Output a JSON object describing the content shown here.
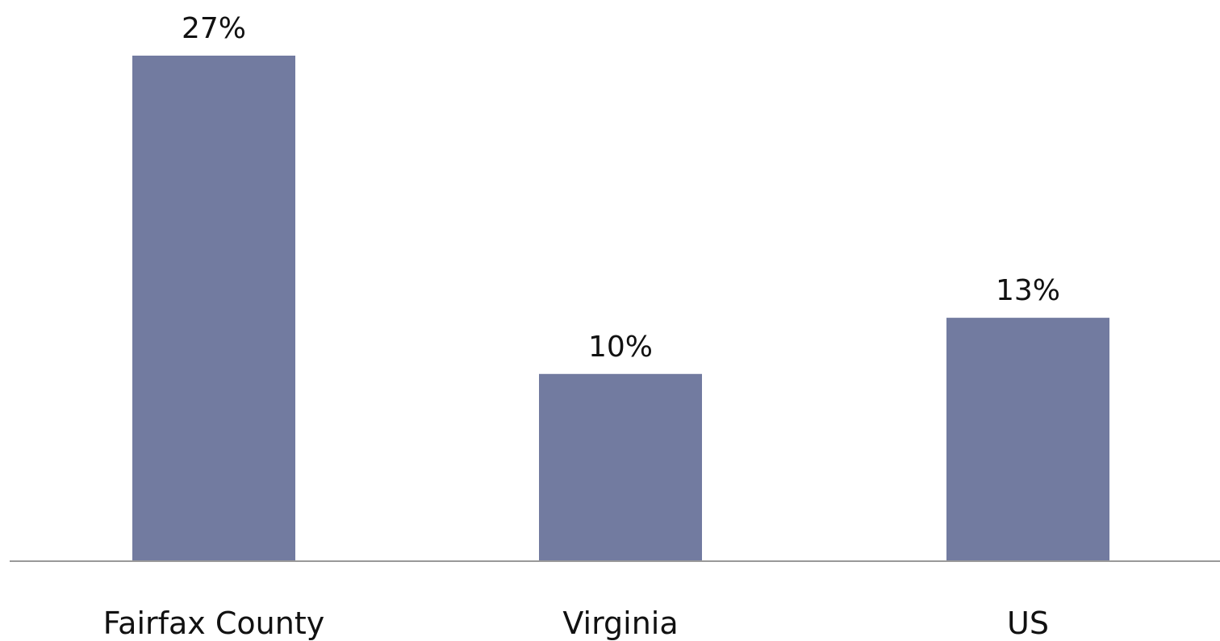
{
  "chart_data": {
    "type": "bar",
    "title": "",
    "xlabel": "",
    "ylabel": "",
    "categories": [
      "Fairfax County",
      "Virginia",
      "US"
    ],
    "values": [
      27,
      10,
      13
    ],
    "value_labels": [
      "27%",
      "10%",
      "13%"
    ],
    "ylim": [
      0,
      27
    ],
    "grid": false,
    "legend": "none",
    "bar_color": "#727BA0",
    "axis_color": "#999999"
  }
}
